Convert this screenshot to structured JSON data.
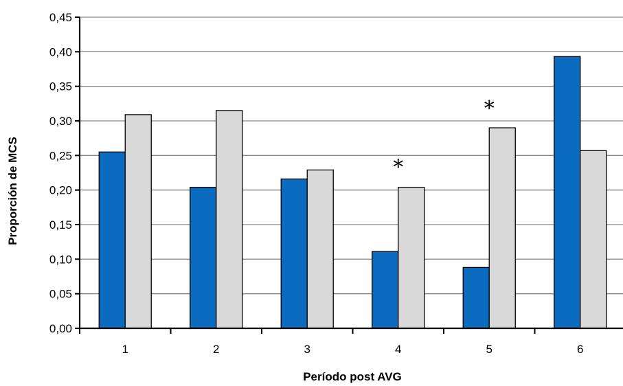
{
  "chart_data": {
    "type": "bar",
    "title": "",
    "xlabel": "Período post AVG",
    "ylabel": "Proporción de MCS",
    "categories": [
      "1",
      "2",
      "3",
      "4",
      "5",
      "6"
    ],
    "series": [
      {
        "values": [
          0.255,
          0.204,
          0.216,
          0.111,
          0.088,
          0.393
        ],
        "color": "#0a6bbf"
      },
      {
        "values": [
          0.309,
          0.315,
          0.229,
          0.204,
          0.29,
          0.257
        ],
        "color": "#d9d9d9"
      }
    ],
    "ylim": [
      0,
      0.45
    ],
    "yticks": [
      "0,00",
      "0,05",
      "0,10",
      "0,15",
      "0,20",
      "0,25",
      "0,30",
      "0,35",
      "0,40",
      "0,45"
    ],
    "grid": true,
    "legend": "none",
    "annotations": [
      {
        "text": "*",
        "category": "4",
        "y": 0.245
      },
      {
        "text": "*",
        "category": "5",
        "y": 0.33
      }
    ]
  }
}
